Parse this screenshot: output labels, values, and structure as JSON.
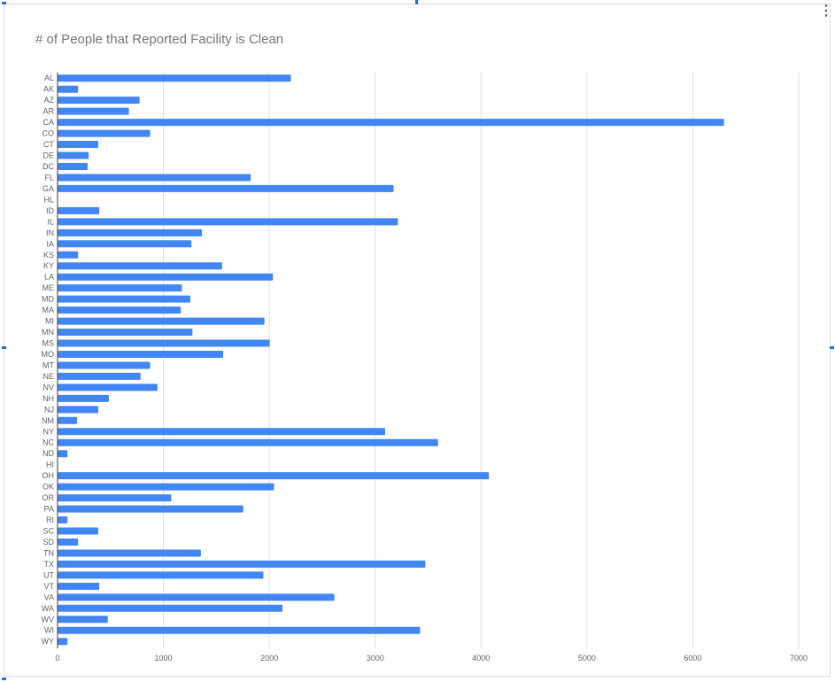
{
  "chart_data": {
    "type": "bar",
    "orientation": "horizontal",
    "title": "# of People that Reported Facility is Clean",
    "xlabel": "",
    "ylabel": "",
    "xlim": [
      0,
      7000
    ],
    "x_ticks": [
      "0",
      "1000",
      "2000",
      "3000",
      "4000",
      "5000",
      "6000",
      "7000"
    ],
    "grid": true,
    "legend": "none",
    "bar_color": "#4285f4",
    "categories": [
      "AL",
      "AK",
      "AZ",
      "AR",
      "CA",
      "CO",
      "CT",
      "DE",
      "DC",
      "FL",
      "GA",
      "HL",
      "ID",
      "IL",
      "IN",
      "IA",
      "KS",
      "KY",
      "LA",
      "ME",
      "MD",
      "MA",
      "MI",
      "MN",
      "MS",
      "MO",
      "MT",
      "NE",
      "NV",
      "NH",
      "NJ",
      "NM",
      "NY",
      "NC",
      "ND",
      "HI",
      "OH",
      "OK",
      "OR",
      "PA",
      "RI",
      "SC",
      "SD",
      "TN",
      "TX",
      "UT",
      "VT",
      "VA",
      "WA",
      "WV",
      "WI",
      "WY"
    ],
    "values": [
      2200,
      190,
      770,
      670,
      6290,
      870,
      380,
      290,
      280,
      1820,
      3170,
      0,
      390,
      3210,
      1360,
      1260,
      190,
      1550,
      2030,
      1170,
      1250,
      1160,
      1950,
      1270,
      2000,
      1560,
      870,
      780,
      940,
      480,
      380,
      180,
      3090,
      3590,
      90,
      0,
      4070,
      2040,
      1070,
      1750,
      90,
      380,
      190,
      1350,
      3470,
      1940,
      390,
      2610,
      2120,
      470,
      3420,
      90
    ]
  },
  "ui": {
    "menu_glyph": "⋮",
    "menu_icon": "more-vert-icon",
    "selection_color": "#1a73e8"
  }
}
